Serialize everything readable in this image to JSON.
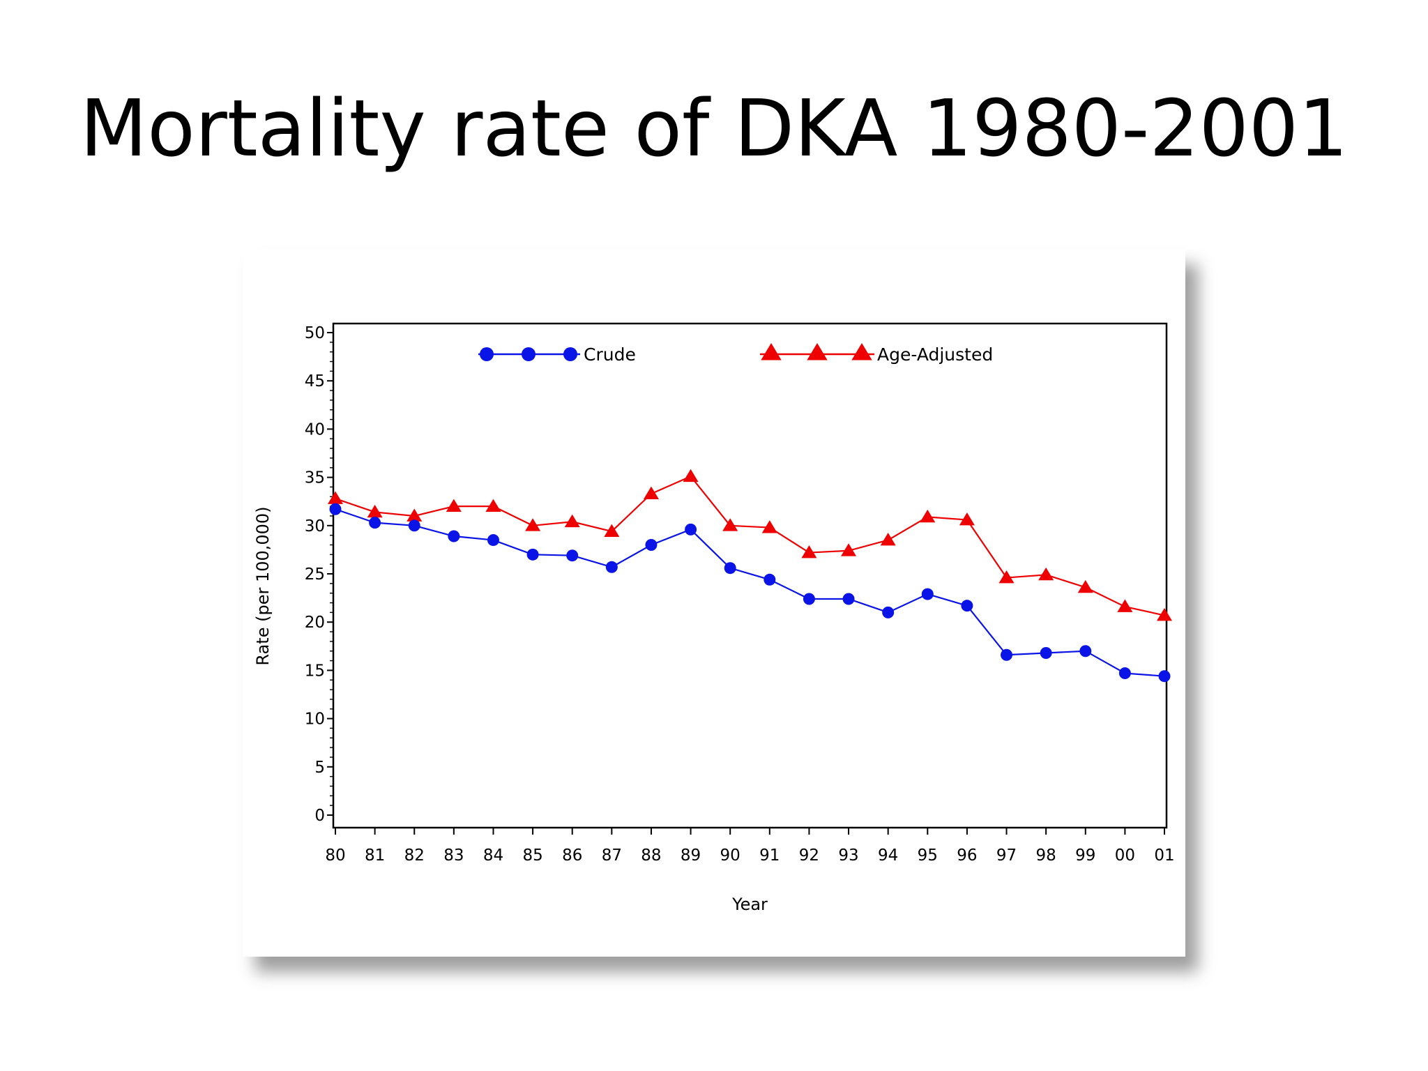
{
  "slide": {
    "title": "Mortality rate of DKA 1980-2001"
  },
  "colors": {
    "crude": "#0a14e6",
    "age_adjusted": "#ee0000",
    "axis": "#000000"
  },
  "chart_data": {
    "type": "line",
    "title": "Mortality rate of DKA 1980-2001",
    "xlabel": "Year",
    "ylabel": "Rate (per 100,000)",
    "categories": [
      "80",
      "81",
      "82",
      "83",
      "84",
      "85",
      "86",
      "87",
      "88",
      "89",
      "90",
      "91",
      "92",
      "93",
      "94",
      "95",
      "96",
      "97",
      "98",
      "99",
      "00",
      "01"
    ],
    "ylim": [
      0,
      50
    ],
    "yticks": [
      0,
      5,
      10,
      15,
      20,
      25,
      30,
      35,
      40,
      45,
      50
    ],
    "grid": false,
    "legend_position": "top",
    "series": [
      {
        "name": "Crude",
        "marker": "circle",
        "values": [
          31.7,
          30.3,
          30.0,
          28.9,
          28.5,
          27.0,
          26.9,
          25.7,
          28.0,
          29.6,
          25.6,
          24.4,
          22.4,
          22.4,
          21.0,
          22.9,
          21.7,
          16.6,
          16.8,
          17.0,
          14.7,
          14.4
        ]
      },
      {
        "name": "Age-Adjusted",
        "marker": "triangle",
        "values": [
          32.8,
          31.4,
          31.0,
          32.0,
          32.0,
          30.0,
          30.4,
          29.4,
          33.3,
          35.1,
          30.0,
          29.8,
          27.2,
          27.4,
          28.5,
          30.9,
          30.6,
          24.6,
          24.9,
          23.6,
          21.6,
          20.7
        ]
      }
    ]
  }
}
